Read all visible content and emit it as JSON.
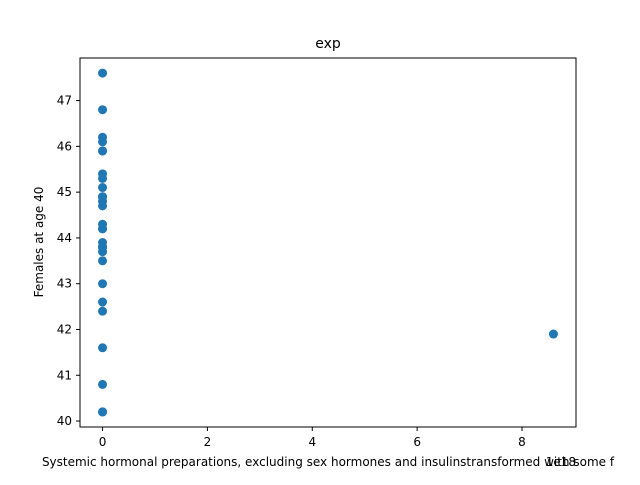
{
  "chart_data": {
    "type": "scatter",
    "title": "exp",
    "xlabel": "Systemic hormonal preparations, excluding sex hormones and insulinstransformed with some f",
    "ylabel": "Females at age 40",
    "x_offset_label": "1e18",
    "xlim": [
      -0.43,
      9.03
    ],
    "ylim": [
      39.87,
      47.93
    ],
    "xticks": [
      0,
      2,
      4,
      6,
      8
    ],
    "yticks": [
      40,
      41,
      42,
      43,
      44,
      45,
      46,
      47
    ],
    "marker_color": "#1f77b4",
    "series": [
      {
        "x": [
          0,
          0,
          0,
          0,
          0,
          0,
          0,
          0,
          0,
          0,
          0,
          0,
          0,
          0,
          0,
          0,
          0,
          0,
          0,
          0,
          0,
          0,
          0,
          0,
          0,
          0,
          0,
          0,
          8.6
        ],
        "y": [
          47.6,
          46.8,
          46.2,
          46.1,
          45.9,
          45.4,
          45.3,
          45.1,
          44.9,
          44.8,
          44.7,
          44.3,
          44.2,
          43.9,
          43.8,
          43.7,
          43.5,
          43.0,
          42.6,
          42.4,
          41.6,
          40.8,
          40.2,
          40.2,
          44.2,
          45.9,
          44.9,
          43.8,
          41.9
        ]
      }
    ]
  }
}
